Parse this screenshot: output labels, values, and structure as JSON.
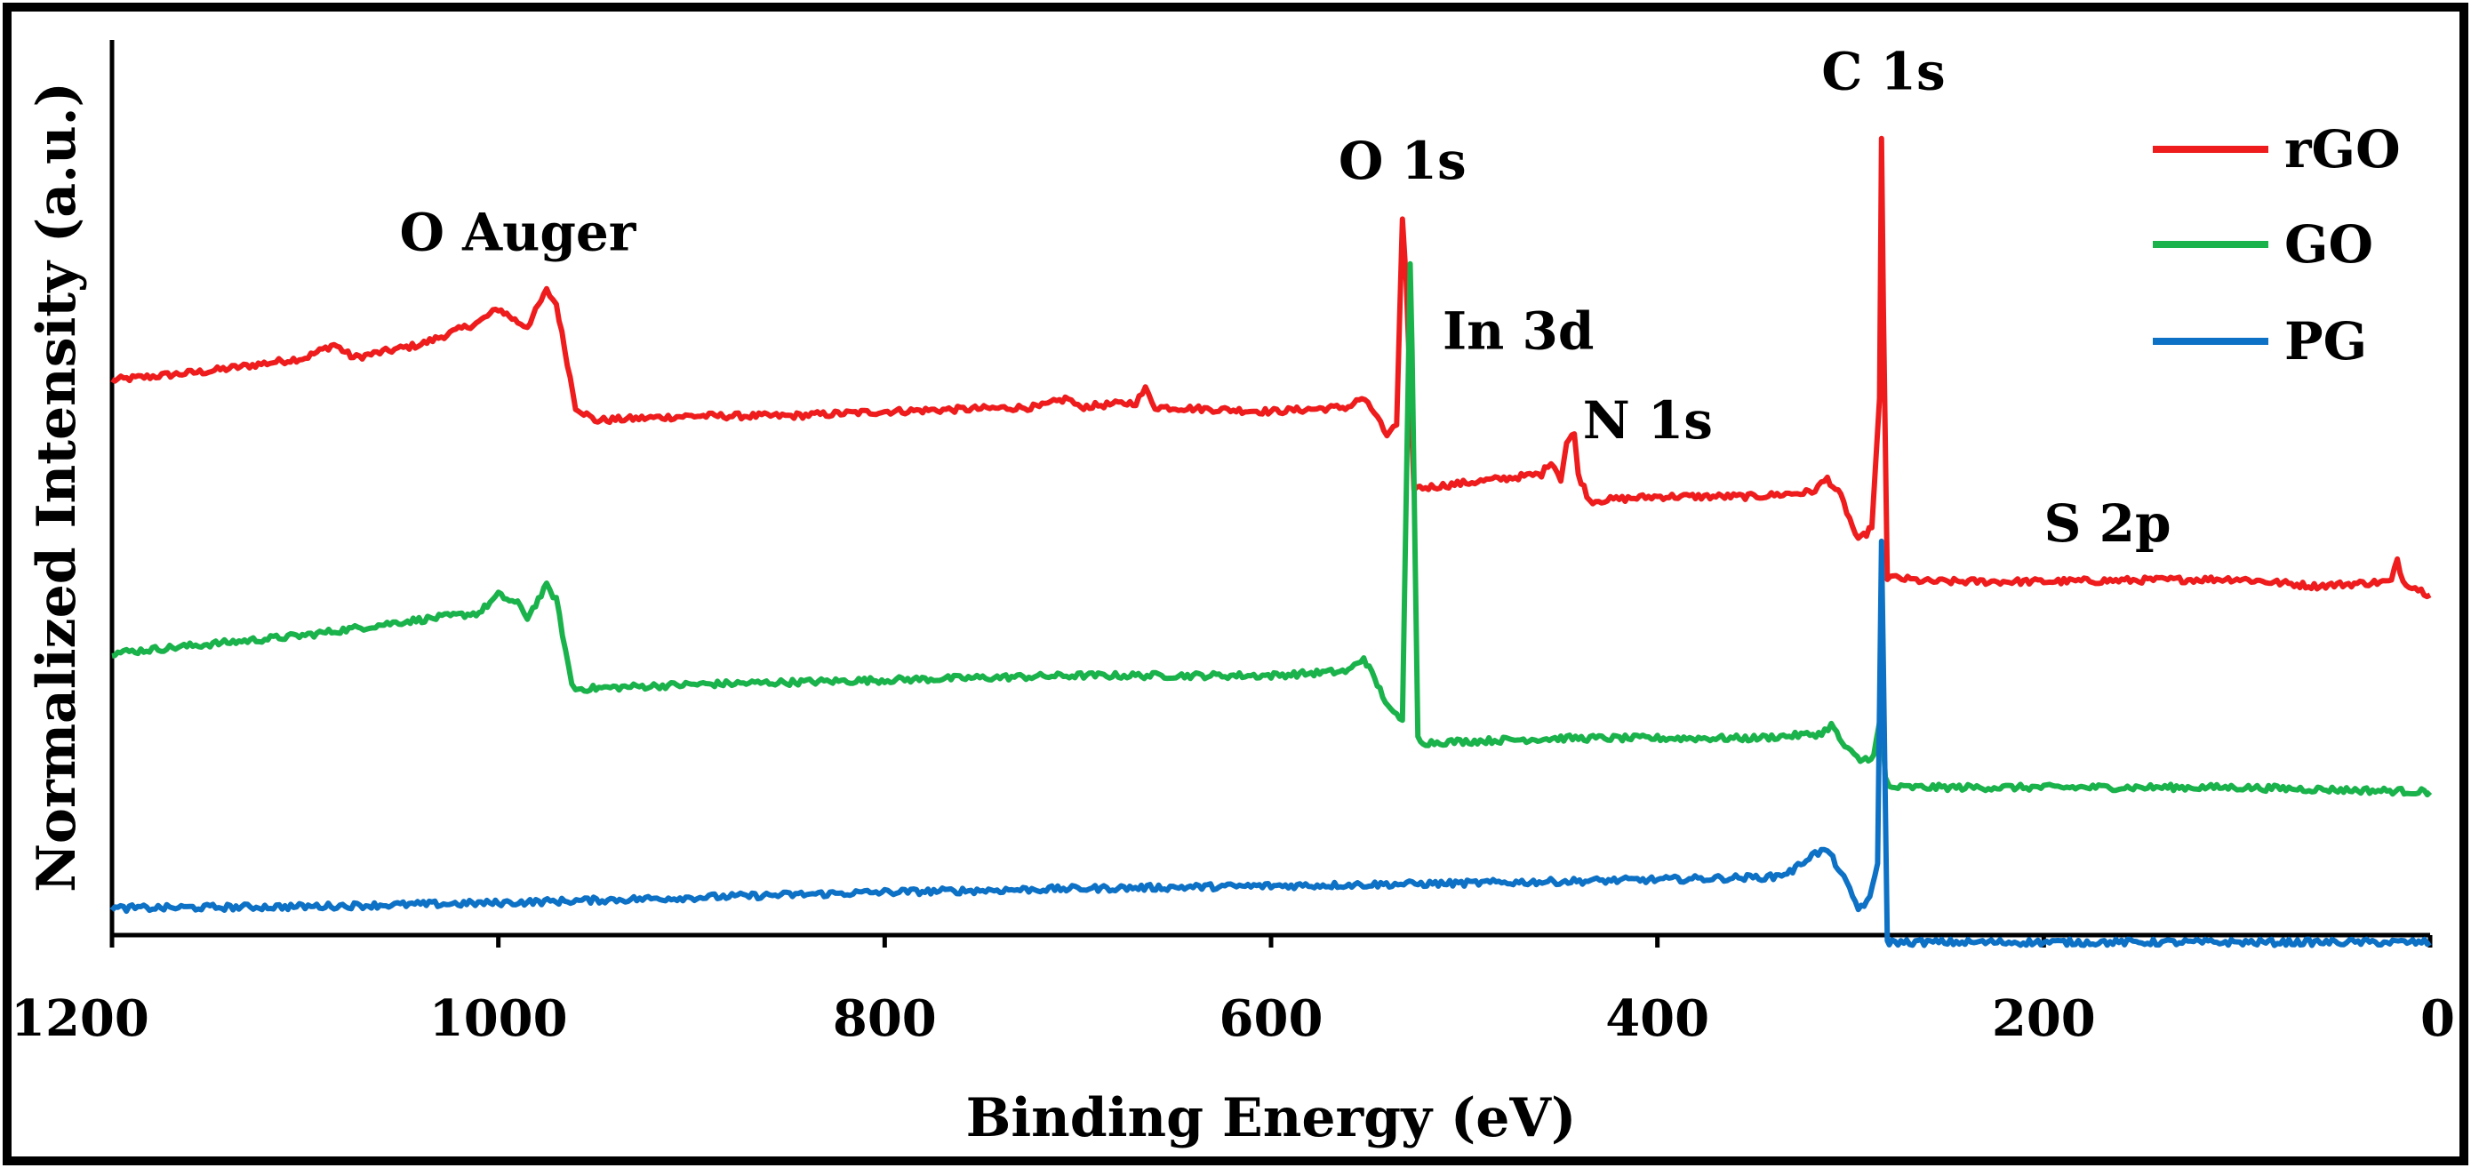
{
  "chart_data": {
    "type": "line",
    "title": "",
    "xlabel": "Binding Energy (eV)",
    "ylabel": "Normalized Intensity (a.u.)",
    "xlim": [
      1200,
      0
    ],
    "ylim": [
      0,
      10
    ],
    "x_reversed": true,
    "y_ticks_shown": false,
    "grid": false,
    "legend_position": "top-right",
    "x_ticks": [
      1200,
      1000,
      800,
      600,
      400,
      200,
      0
    ],
    "x_tick_labels": [
      "1200",
      "1000",
      "800",
      "600",
      "400",
      "200",
      "0"
    ],
    "series": [
      {
        "name": "rGO",
        "color": "#ee1c1c",
        "points": [
          [
            1200,
            6.2
          ],
          [
            1150,
            6.3
          ],
          [
            1100,
            6.45
          ],
          [
            1085,
            6.6
          ],
          [
            1075,
            6.45
          ],
          [
            1040,
            6.6
          ],
          [
            1010,
            6.85
          ],
          [
            1000,
            7.0
          ],
          [
            990,
            6.85
          ],
          [
            985,
            6.8
          ],
          [
            975,
            7.2
          ],
          [
            970,
            7.05
          ],
          [
            960,
            5.9
          ],
          [
            950,
            5.75
          ],
          [
            900,
            5.8
          ],
          [
            850,
            5.8
          ],
          [
            800,
            5.85
          ],
          [
            720,
            5.9
          ],
          [
            705,
            6.0
          ],
          [
            700,
            5.9
          ],
          [
            670,
            5.95
          ],
          [
            665,
            6.1
          ],
          [
            660,
            5.9
          ],
          [
            600,
            5.85
          ],
          [
            560,
            5.9
          ],
          [
            553,
            6.0
          ],
          [
            545,
            5.8
          ],
          [
            540,
            5.55
          ],
          [
            535,
            5.7
          ],
          [
            532,
            8.0
          ],
          [
            530,
            7.3
          ],
          [
            526,
            5.0
          ],
          [
            520,
            5.0
          ],
          [
            460,
            5.15
          ],
          [
            455,
            5.3
          ],
          [
            450,
            5.1
          ],
          [
            447,
            5.5
          ],
          [
            443,
            5.6
          ],
          [
            441,
            5.15
          ],
          [
            435,
            4.85
          ],
          [
            400,
            4.9
          ],
          [
            350,
            4.9
          ],
          [
            320,
            4.95
          ],
          [
            312,
            5.1
          ],
          [
            305,
            4.9
          ],
          [
            296,
            4.4
          ],
          [
            289,
            4.55
          ],
          [
            285,
            6.0
          ],
          [
            284,
            8.9
          ],
          [
            283,
            7.0
          ],
          [
            281,
            4.0
          ],
          [
            260,
            3.95
          ],
          [
            200,
            3.95
          ],
          [
            100,
            3.98
          ],
          [
            60,
            3.9
          ],
          [
            20,
            3.95
          ],
          [
            17,
            4.2
          ],
          [
            14,
            3.95
          ],
          [
            0,
            3.8
          ]
        ]
      },
      {
        "name": "GO",
        "color": "#1ab24b",
        "points": [
          [
            1200,
            3.15
          ],
          [
            1100,
            3.35
          ],
          [
            1050,
            3.5
          ],
          [
            1010,
            3.6
          ],
          [
            1000,
            3.8
          ],
          [
            990,
            3.7
          ],
          [
            985,
            3.55
          ],
          [
            975,
            3.9
          ],
          [
            970,
            3.75
          ],
          [
            962,
            2.8
          ],
          [
            960,
            2.75
          ],
          [
            900,
            2.8
          ],
          [
            800,
            2.85
          ],
          [
            700,
            2.9
          ],
          [
            600,
            2.9
          ],
          [
            560,
            2.95
          ],
          [
            552,
            3.1
          ],
          [
            545,
            2.8
          ],
          [
            538,
            2.5
          ],
          [
            532,
            2.4
          ],
          [
            528,
            7.5
          ],
          [
            527,
            6.5
          ],
          [
            524,
            2.2
          ],
          [
            520,
            2.15
          ],
          [
            450,
            2.2
          ],
          [
            400,
            2.2
          ],
          [
            350,
            2.2
          ],
          [
            315,
            2.25
          ],
          [
            310,
            2.35
          ],
          [
            303,
            2.1
          ],
          [
            295,
            1.95
          ],
          [
            288,
            2.0
          ],
          [
            284,
            2.5
          ],
          [
            282,
            1.75
          ],
          [
            280,
            1.65
          ],
          [
            200,
            1.65
          ],
          [
            100,
            1.65
          ],
          [
            0,
            1.6
          ]
        ]
      },
      {
        "name": "PG",
        "color": "#0d71c5",
        "points": [
          [
            1200,
            0.3
          ],
          [
            1100,
            0.32
          ],
          [
            1000,
            0.36
          ],
          [
            900,
            0.42
          ],
          [
            800,
            0.48
          ],
          [
            700,
            0.52
          ],
          [
            600,
            0.55
          ],
          [
            500,
            0.58
          ],
          [
            400,
            0.62
          ],
          [
            340,
            0.65
          ],
          [
            330,
            0.72
          ],
          [
            320,
            0.9
          ],
          [
            312,
            0.95
          ],
          [
            305,
            0.7
          ],
          [
            296,
            0.3
          ],
          [
            290,
            0.4
          ],
          [
            286,
            0.8
          ],
          [
            284,
            4.4
          ],
          [
            283,
            3.0
          ],
          [
            281,
            -0.05
          ],
          [
            280,
            -0.08
          ],
          [
            200,
            -0.08
          ],
          [
            100,
            -0.08
          ],
          [
            0,
            -0.08
          ]
        ]
      }
    ],
    "annotations": [
      {
        "text": "O Auger",
        "x": 990,
        "y": 7.65
      },
      {
        "text": "O 1s",
        "x": 532,
        "y": 8.45
      },
      {
        "text": "In 3d",
        "x": 472,
        "y": 6.55
      },
      {
        "text": "N 1s",
        "x": 405,
        "y": 5.55
      },
      {
        "text": "C 1s",
        "x": 283,
        "y": 9.45
      },
      {
        "text": "S 2p",
        "x": 167,
        "y": 4.4
      }
    ]
  }
}
